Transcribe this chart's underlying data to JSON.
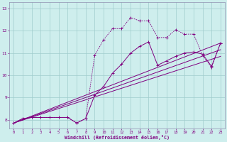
{
  "xlabel": "Windchill (Refroidissement éolien,°C)",
  "bg_color": "#ceeeed",
  "line_color": "#800080",
  "grid_color": "#a0cccc",
  "xlim": [
    -0.5,
    23.5
  ],
  "ylim": [
    7.6,
    13.3
  ],
  "yticks": [
    8,
    9,
    10,
    11,
    12,
    13
  ],
  "xticks": [
    0,
    1,
    2,
    3,
    4,
    5,
    6,
    7,
    8,
    9,
    10,
    11,
    12,
    13,
    14,
    15,
    16,
    17,
    18,
    19,
    20,
    21,
    22,
    23
  ],
  "series_dot_x": [
    0,
    1,
    2,
    3,
    4,
    5,
    6,
    7,
    8,
    9,
    10,
    11,
    12,
    13,
    14,
    15,
    16,
    17,
    18,
    19,
    20,
    21,
    22,
    23
  ],
  "series_dot_y": [
    7.85,
    8.05,
    8.1,
    8.1,
    8.1,
    8.1,
    8.1,
    7.85,
    8.05,
    10.9,
    11.6,
    12.1,
    12.1,
    12.6,
    12.45,
    12.45,
    11.7,
    11.7,
    12.05,
    11.85,
    11.85,
    10.9,
    10.35,
    11.45
  ],
  "series_solid_x": [
    0,
    1,
    2,
    3,
    4,
    5,
    6,
    7,
    8,
    9,
    10,
    11,
    12,
    13,
    14,
    15,
    16,
    17,
    18,
    19,
    20,
    21,
    22,
    23
  ],
  "series_solid_y": [
    7.85,
    8.05,
    8.1,
    8.1,
    8.1,
    8.1,
    8.1,
    7.85,
    8.05,
    9.1,
    9.5,
    10.1,
    10.5,
    11.0,
    11.3,
    11.5,
    10.45,
    10.65,
    10.85,
    11.0,
    11.05,
    10.95,
    10.4,
    11.45
  ],
  "line1_x": [
    0,
    23
  ],
  "line1_y": [
    7.85,
    11.45
  ],
  "line2_x": [
    0,
    23
  ],
  "line2_y": [
    7.85,
    10.85
  ],
  "line3_x": [
    0,
    23
  ],
  "line3_y": [
    7.85,
    11.15
  ]
}
